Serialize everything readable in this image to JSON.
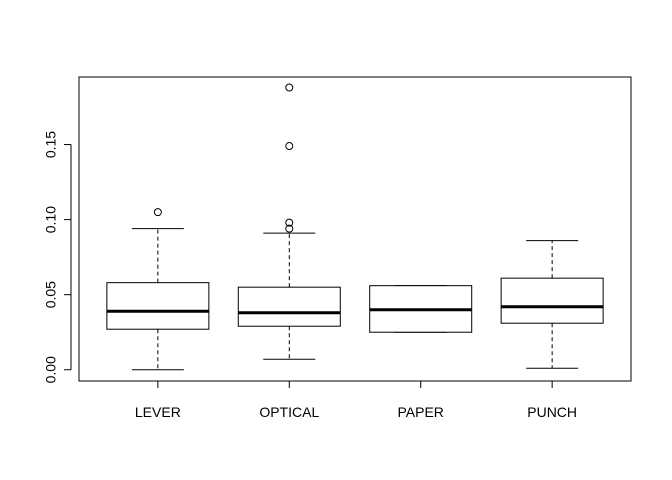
{
  "chart_data": {
    "type": "box",
    "categories": [
      "LEVER",
      "OPTICAL",
      "PAPER",
      "PUNCH"
    ],
    "boxes": [
      {
        "name": "LEVER",
        "whisker_low": 0.0,
        "q1": 0.027,
        "median": 0.039,
        "q3": 0.058,
        "whisker_high": 0.094,
        "outliers": [
          0.105
        ]
      },
      {
        "name": "OPTICAL",
        "whisker_low": 0.007,
        "q1": 0.029,
        "median": 0.038,
        "q3": 0.055,
        "whisker_high": 0.091,
        "outliers": [
          0.094,
          0.098,
          0.149,
          0.188
        ]
      },
      {
        "name": "PAPER",
        "whisker_low": 0.025,
        "q1": 0.025,
        "median": 0.04,
        "q3": 0.056,
        "whisker_high": 0.056,
        "outliers": []
      },
      {
        "name": "PUNCH",
        "whisker_low": 0.001,
        "q1": 0.031,
        "median": 0.042,
        "q3": 0.061,
        "whisker_high": 0.086,
        "outliers": []
      }
    ],
    "y_ticks": [
      "0.00",
      "0.05",
      "0.10",
      "0.15"
    ],
    "ylim": [
      -0.0075,
      0.195
    ],
    "grid": false,
    "legend": "none",
    "title": "",
    "xlabel": "",
    "ylabel": ""
  }
}
